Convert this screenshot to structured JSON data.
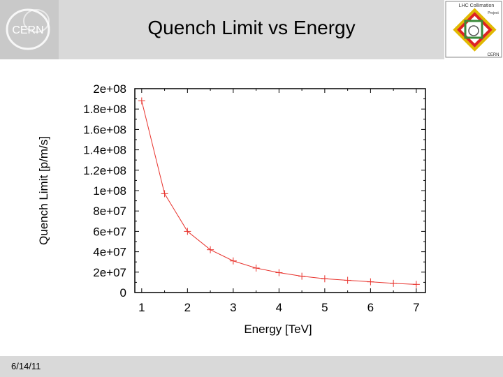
{
  "slide": {
    "title": "Quench Limit vs Energy",
    "date": "6/14/11",
    "logos": {
      "left_text": "CERN",
      "right_line1": "LHC Collimation",
      "right_line2": "Project",
      "right_line3": "CERN"
    }
  },
  "colors": {
    "series": "#e8322c",
    "axis": "#000000",
    "header": "#d9d9d9"
  },
  "chart_data": {
    "type": "line",
    "title": "",
    "xlabel": "Energy [TeV]",
    "ylabel": "Quench Limit [p/m/s]",
    "xlim": [
      0.85,
      7.2
    ],
    "ylim": [
      0,
      200000000
    ],
    "xticks": [
      1,
      2,
      3,
      4,
      5,
      6,
      7
    ],
    "xtick_labels": [
      "1",
      "2",
      "3",
      "4",
      "5",
      "6",
      "7"
    ],
    "yticks": [
      0,
      20000000,
      40000000,
      60000000,
      80000000,
      100000000,
      120000000,
      140000000,
      160000000,
      180000000,
      200000000
    ],
    "ytick_labels": [
      "0",
      "2e+07",
      "4e+07",
      "6e+07",
      "8e+07",
      "1e+08",
      "1.2e+08",
      "1.4e+08",
      "1.6e+08",
      "1.8e+08",
      "2e+08"
    ],
    "grid": false,
    "marker": "+",
    "series": [
      {
        "name": "Quench Limit",
        "x": [
          1,
          1.5,
          2,
          2.5,
          3,
          3.5,
          4,
          4.5,
          5,
          5.5,
          6,
          6.5,
          7
        ],
        "y": [
          188000000,
          97000000,
          60000000,
          42000000,
          31000000,
          24000000,
          19500000,
          16000000,
          13500000,
          12000000,
          10500000,
          9000000,
          8000000
        ]
      }
    ]
  }
}
